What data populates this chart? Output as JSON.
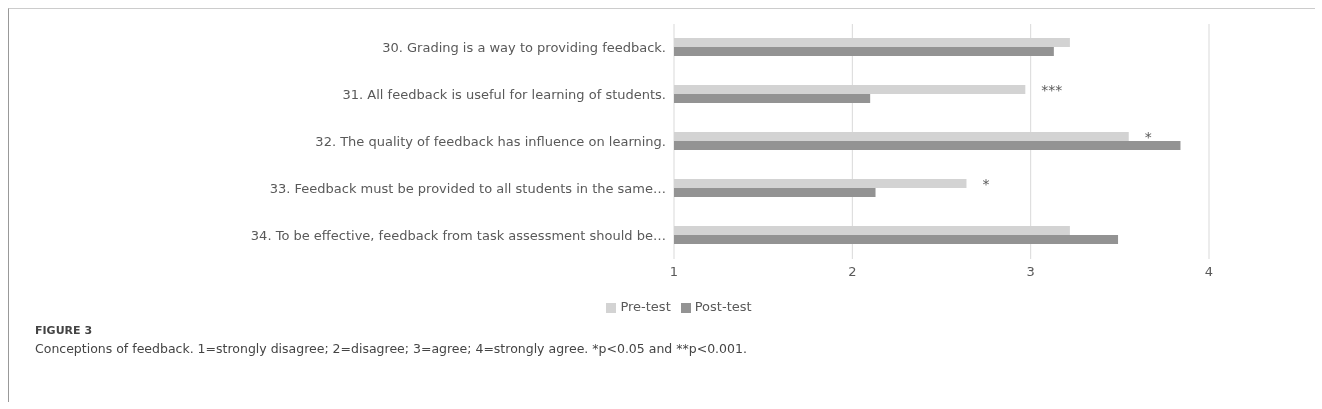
{
  "chart_data": {
    "type": "bar",
    "orientation": "horizontal",
    "title": "FIGURE 3",
    "categories": [
      "30. Grading is a way to providing feedback.",
      "31. All feedback is useful for learning of students.",
      "32. The quality of feedback has influence on learning.",
      "33. Feedback must be provided to all students in the same…",
      "34. To be effective, feedback from task assessment should be…"
    ],
    "series": [
      {
        "name": "Pre-test",
        "color": "#d3d3d3",
        "values": [
          3.22,
          2.97,
          3.55,
          2.64,
          3.22
        ]
      },
      {
        "name": "Post-test",
        "color": "#939393",
        "values": [
          3.13,
          2.1,
          3.84,
          2.13,
          3.49
        ]
      }
    ],
    "xlim": [
      1,
      4
    ],
    "xticks": [
      1,
      2,
      3,
      4
    ],
    "grid": "x",
    "legend": "bottom",
    "annotations": [
      {
        "text": "***",
        "x": 2.97,
        "y": "31. All feedback is useful for learning of students."
      },
      {
        "text": "*",
        "x": 3.55,
        "y": "32. The quality of feedback has influence on learning."
      },
      {
        "text": "*",
        "x": 2.64,
        "y": "33. Feedback must be provided to all students in the same…"
      },
      "Conceptions of feedback. 1=strongly disagree; 2=disagree; 3=agree; 4=strongly agree. *p<0.05 and **p<0.001."
    ]
  }
}
